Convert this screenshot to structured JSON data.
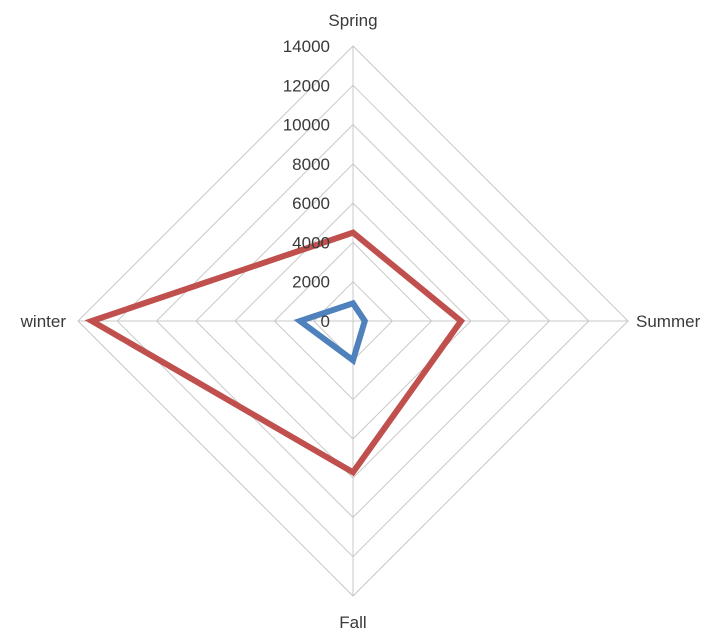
{
  "chart_data": {
    "type": "radar",
    "categories": [
      "Spring",
      "Summer",
      "Fall",
      "winter"
    ],
    "r_ticks": [
      0,
      2000,
      4000,
      6000,
      8000,
      10000,
      12000,
      14000
    ],
    "rlim": [
      0,
      14000
    ],
    "grid": true,
    "legend": "none",
    "series": [
      {
        "values": [
          4500,
          5500,
          7700,
          13300
        ],
        "color": "#c0504d"
      },
      {
        "values": [
          900,
          600,
          2000,
          2700
        ],
        "color": "#4f81bd"
      }
    ]
  }
}
